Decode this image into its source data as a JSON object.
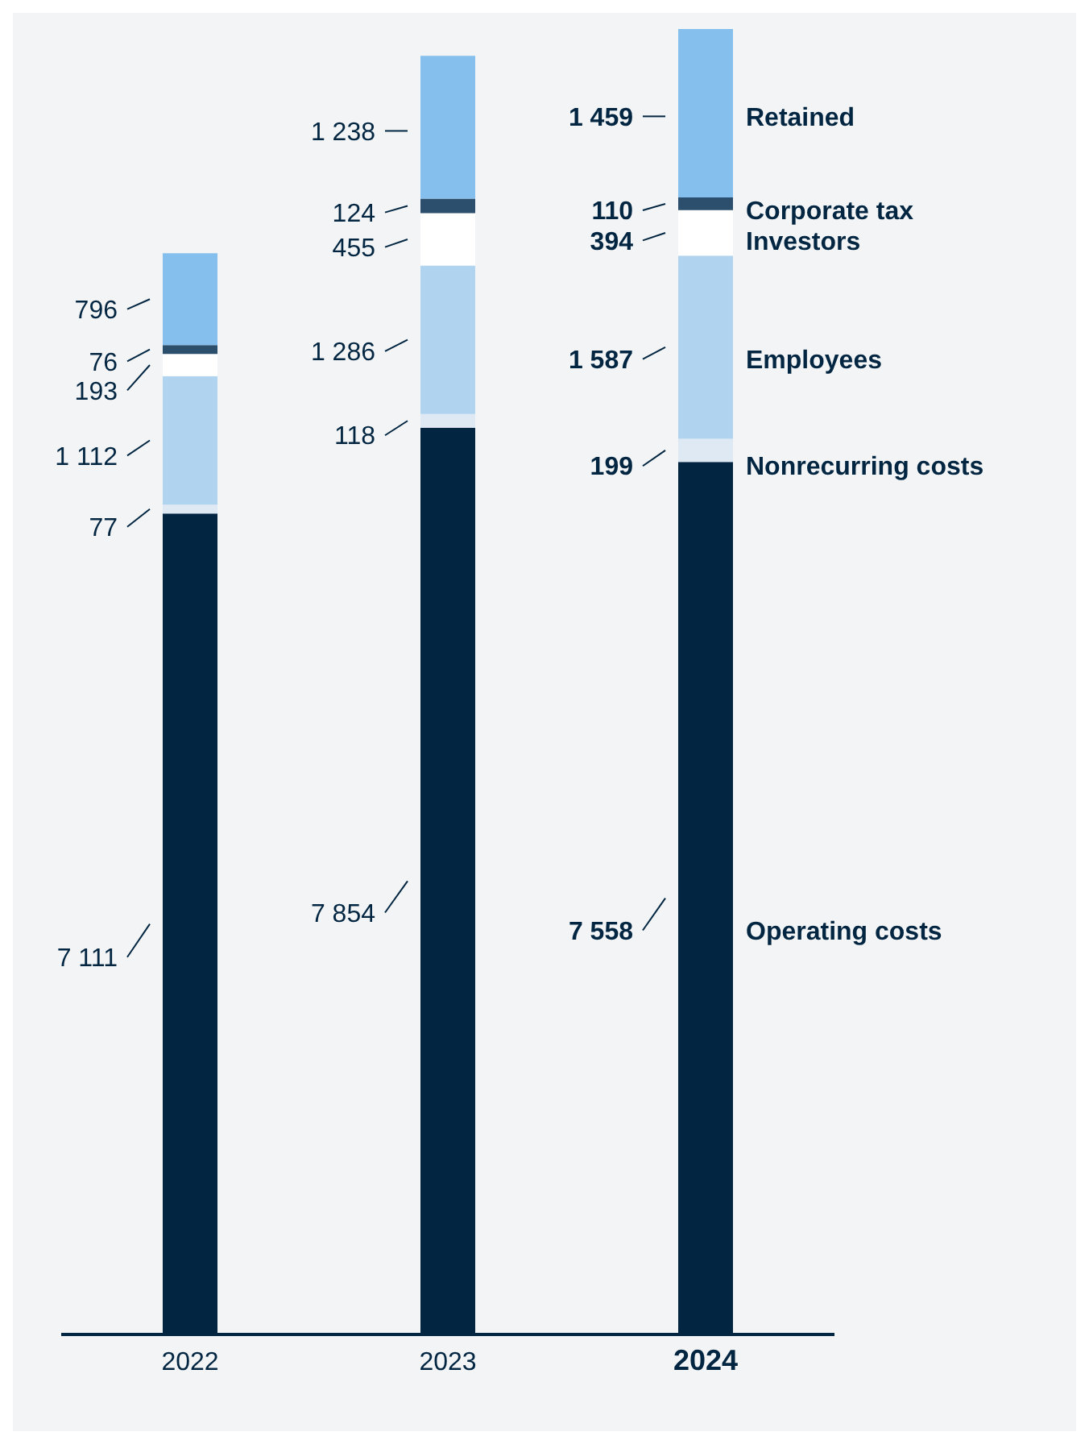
{
  "chart_data": {
    "type": "bar",
    "stacked": true,
    "categories": [
      "2022",
      "2023",
      "2024"
    ],
    "series": [
      {
        "name": "Operating costs",
        "color": "#022641",
        "values": [
          7111,
          7854,
          7558
        ],
        "value_labels": [
          "7 111",
          "7 854",
          "7 558"
        ]
      },
      {
        "name": "Nonrecurring costs",
        "color": "#dfe9f3",
        "values": [
          77,
          118,
          199
        ],
        "value_labels": [
          "77",
          "118",
          "199"
        ]
      },
      {
        "name": "Employees",
        "color": "#b0d4f0",
        "values": [
          1112,
          1286,
          1587
        ],
        "value_labels": [
          "1 112",
          "1 286",
          "1 587"
        ]
      },
      {
        "name": "Investors",
        "color": "#ffffff",
        "values": [
          193,
          455,
          394
        ],
        "value_labels": [
          "193",
          "455",
          "394"
        ]
      },
      {
        "name": "Corporate tax",
        "color": "#2d4f6e",
        "values": [
          76,
          124,
          110
        ],
        "value_labels": [
          "76",
          "124",
          "110"
        ]
      },
      {
        "name": "Retained",
        "color": "#85bfee",
        "values": [
          796,
          1238,
          1459
        ],
        "value_labels": [
          "796",
          "1 238",
          "1 459"
        ]
      }
    ]
  }
}
